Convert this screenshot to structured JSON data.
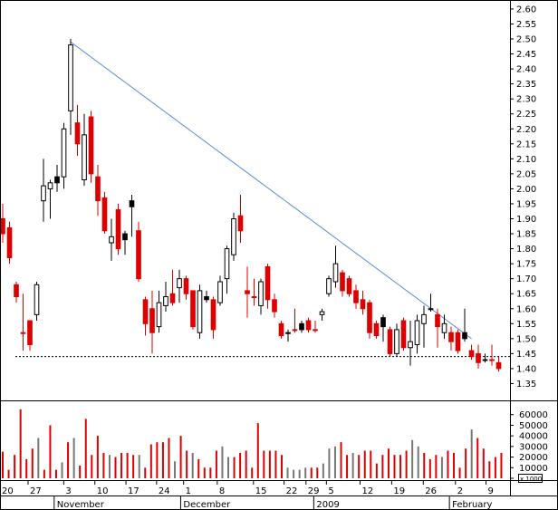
{
  "chart_data": [
    {
      "type": "candlestick",
      "y_ticks": [
        "2.60",
        "2.55",
        "2.50",
        "2.45",
        "2.40",
        "2.35",
        "2.30",
        "2.25",
        "2.20",
        "2.15",
        "2.10",
        "2.05",
        "2.00",
        "1.95",
        "1.90",
        "1.85",
        "1.80",
        "1.75",
        "1.70",
        "1.65",
        "1.60",
        "1.55",
        "1.50",
        "1.45",
        "1.40",
        "1.35"
      ],
      "ylim": [
        1.3,
        2.63
      ],
      "grid": false,
      "trendline": {
        "from": 2.49,
        "to": 1.5
      },
      "support_level": 1.44,
      "up_color": "#ffffff",
      "down_color": "#dd0000",
      "candles": [
        {
          "o": 1.9,
          "h": 1.95,
          "l": 1.82,
          "c": 1.85,
          "k": "red"
        },
        {
          "o": 1.87,
          "h": 1.89,
          "l": 1.75,
          "c": 1.77,
          "k": "red"
        },
        {
          "o": 1.68,
          "h": 1.69,
          "l": 1.62,
          "c": 1.64,
          "k": "red"
        },
        {
          "o": 1.52,
          "h": 1.65,
          "l": 1.46,
          "c": 1.52,
          "k": "red"
        },
        {
          "o": 1.48,
          "h": 1.56,
          "l": 1.46,
          "c": 1.56,
          "k": "red"
        },
        {
          "o": 1.58,
          "h": 1.69,
          "l": 1.56,
          "c": 1.68,
          "k": "white"
        },
        {
          "o": 1.96,
          "h": 2.1,
          "l": 1.89,
          "c": 2.01,
          "k": "white"
        },
        {
          "o": 2.0,
          "h": 2.03,
          "l": 1.9,
          "c": 2.02,
          "k": "white"
        },
        {
          "o": 2.02,
          "h": 2.08,
          "l": 1.99,
          "c": 2.04,
          "k": "black"
        },
        {
          "o": 2.04,
          "h": 2.22,
          "l": 2.0,
          "c": 2.2,
          "k": "white"
        },
        {
          "o": 2.26,
          "h": 2.5,
          "l": 2.18,
          "c": 2.48,
          "k": "white"
        },
        {
          "o": 2.22,
          "h": 2.28,
          "l": 2.11,
          "c": 2.15,
          "k": "red"
        },
        {
          "o": 2.03,
          "h": 2.25,
          "l": 2.01,
          "c": 2.18,
          "k": "white"
        },
        {
          "o": 2.24,
          "h": 2.26,
          "l": 2.02,
          "c": 2.05,
          "k": "red"
        },
        {
          "o": 2.04,
          "h": 2.08,
          "l": 1.91,
          "c": 1.96,
          "k": "red"
        },
        {
          "o": 1.97,
          "h": 1.99,
          "l": 1.85,
          "c": 1.86,
          "k": "red"
        },
        {
          "o": 1.82,
          "h": 1.9,
          "l": 1.76,
          "c": 1.84,
          "k": "white"
        },
        {
          "o": 1.93,
          "h": 1.95,
          "l": 1.78,
          "c": 1.8,
          "k": "red"
        },
        {
          "o": 1.85,
          "h": 1.86,
          "l": 1.78,
          "c": 1.83,
          "k": "black"
        },
        {
          "o": 1.94,
          "h": 1.98,
          "l": 1.84,
          "c": 1.96,
          "k": "black"
        },
        {
          "o": 1.86,
          "h": 1.89,
          "l": 1.69,
          "c": 1.7,
          "k": "red"
        },
        {
          "o": 1.63,
          "h": 1.64,
          "l": 1.51,
          "c": 1.55,
          "k": "red"
        },
        {
          "o": 1.6,
          "h": 1.66,
          "l": 1.45,
          "c": 1.52,
          "k": "red"
        },
        {
          "o": 1.54,
          "h": 1.66,
          "l": 1.52,
          "c": 1.62,
          "k": "white"
        },
        {
          "o": 1.61,
          "h": 1.69,
          "l": 1.59,
          "c": 1.64,
          "k": "white"
        },
        {
          "o": 1.65,
          "h": 1.73,
          "l": 1.61,
          "c": 1.62,
          "k": "red"
        },
        {
          "o": 1.67,
          "h": 1.73,
          "l": 1.62,
          "c": 1.7,
          "k": "white"
        },
        {
          "o": 1.7,
          "h": 1.71,
          "l": 1.63,
          "c": 1.65,
          "k": "red"
        },
        {
          "o": 1.66,
          "h": 1.66,
          "l": 1.53,
          "c": 1.54,
          "k": "red"
        },
        {
          "o": 1.52,
          "h": 1.68,
          "l": 1.5,
          "c": 1.66,
          "k": "white"
        },
        {
          "o": 1.64,
          "h": 1.66,
          "l": 1.62,
          "c": 1.63,
          "k": "black"
        },
        {
          "o": 1.63,
          "h": 1.64,
          "l": 1.5,
          "c": 1.53,
          "k": "red"
        },
        {
          "o": 1.62,
          "h": 1.71,
          "l": 1.61,
          "c": 1.69,
          "k": "white"
        },
        {
          "o": 1.7,
          "h": 1.81,
          "l": 1.65,
          "c": 1.8,
          "k": "white"
        },
        {
          "o": 1.9,
          "h": 1.92,
          "l": 1.76,
          "c": 1.78,
          "k": "white"
        },
        {
          "o": 1.91,
          "h": 1.98,
          "l": 1.82,
          "c": 1.86,
          "k": "red"
        },
        {
          "o": 1.66,
          "h": 1.74,
          "l": 1.57,
          "c": 1.65,
          "k": "red"
        },
        {
          "o": 1.64,
          "h": 1.7,
          "l": 1.61,
          "c": 1.64,
          "k": "red"
        },
        {
          "o": 1.61,
          "h": 1.7,
          "l": 1.58,
          "c": 1.69,
          "k": "white"
        },
        {
          "o": 1.74,
          "h": 1.75,
          "l": 1.6,
          "c": 1.63,
          "k": "red"
        },
        {
          "o": 1.63,
          "h": 1.65,
          "l": 1.57,
          "c": 1.59,
          "k": "red"
        },
        {
          "o": 1.55,
          "h": 1.56,
          "l": 1.5,
          "c": 1.51,
          "k": "red"
        },
        {
          "o": 1.52,
          "h": 1.53,
          "l": 1.49,
          "c": 1.52,
          "k": "black"
        },
        {
          "o": 1.53,
          "h": 1.6,
          "l": 1.52,
          "c": 1.53,
          "k": "red"
        },
        {
          "o": 1.55,
          "h": 1.56,
          "l": 1.52,
          "c": 1.53,
          "k": "black"
        },
        {
          "o": 1.56,
          "h": 1.57,
          "l": 1.52,
          "c": 1.53,
          "k": "red"
        },
        {
          "o": 1.53,
          "h": 1.56,
          "l": 1.52,
          "c": 1.53,
          "k": "red"
        },
        {
          "o": 1.58,
          "h": 1.6,
          "l": 1.56,
          "c": 1.59,
          "k": "white"
        },
        {
          "o": 1.65,
          "h": 1.71,
          "l": 1.64,
          "c": 1.7,
          "k": "white"
        },
        {
          "o": 1.69,
          "h": 1.81,
          "l": 1.67,
          "c": 1.75,
          "k": "white"
        },
        {
          "o": 1.72,
          "h": 1.73,
          "l": 1.64,
          "c": 1.66,
          "k": "red"
        },
        {
          "o": 1.7,
          "h": 1.71,
          "l": 1.64,
          "c": 1.65,
          "k": "red"
        },
        {
          "o": 1.66,
          "h": 1.68,
          "l": 1.6,
          "c": 1.62,
          "k": "red"
        },
        {
          "o": 1.63,
          "h": 1.66,
          "l": 1.58,
          "c": 1.6,
          "k": "red"
        },
        {
          "o": 1.62,
          "h": 1.63,
          "l": 1.5,
          "c": 1.52,
          "k": "red"
        },
        {
          "o": 1.55,
          "h": 1.56,
          "l": 1.5,
          "c": 1.51,
          "k": "red"
        },
        {
          "o": 1.57,
          "h": 1.58,
          "l": 1.49,
          "c": 1.54,
          "k": "black"
        },
        {
          "o": 1.53,
          "h": 1.54,
          "l": 1.44,
          "c": 1.45,
          "k": "red"
        },
        {
          "o": 1.45,
          "h": 1.55,
          "l": 1.44,
          "c": 1.53,
          "k": "white"
        },
        {
          "o": 1.56,
          "h": 1.57,
          "l": 1.46,
          "c": 1.47,
          "k": "red"
        },
        {
          "o": 1.49,
          "h": 1.56,
          "l": 1.41,
          "c": 1.47,
          "k": "white"
        },
        {
          "o": 1.48,
          "h": 1.58,
          "l": 1.45,
          "c": 1.56,
          "k": "white"
        },
        {
          "o": 1.55,
          "h": 1.61,
          "l": 1.47,
          "c": 1.58,
          "k": "white"
        },
        {
          "o": 1.6,
          "h": 1.65,
          "l": 1.59,
          "c": 1.6,
          "k": "black"
        },
        {
          "o": 1.58,
          "h": 1.6,
          "l": 1.47,
          "c": 1.54,
          "k": "red"
        },
        {
          "o": 1.55,
          "h": 1.58,
          "l": 1.5,
          "c": 1.52,
          "k": "white"
        },
        {
          "o": 1.52,
          "h": 1.54,
          "l": 1.46,
          "c": 1.49,
          "k": "red"
        },
        {
          "o": 1.52,
          "h": 1.53,
          "l": 1.45,
          "c": 1.46,
          "k": "red"
        },
        {
          "o": 1.52,
          "h": 1.6,
          "l": 1.49,
          "c": 1.5,
          "k": "black"
        },
        {
          "o": 1.46,
          "h": 1.48,
          "l": 1.43,
          "c": 1.44,
          "k": "red"
        },
        {
          "o": 1.45,
          "h": 1.48,
          "l": 1.4,
          "c": 1.42,
          "k": "red"
        },
        {
          "o": 1.43,
          "h": 1.45,
          "l": 1.42,
          "c": 1.43,
          "k": "white"
        },
        {
          "o": 1.43,
          "h": 1.48,
          "l": 1.41,
          "c": 1.43,
          "k": "red"
        },
        {
          "o": 1.42,
          "h": 1.44,
          "l": 1.39,
          "c": 1.4,
          "k": "red"
        }
      ]
    },
    {
      "type": "bar",
      "y_ticks": [
        "60000",
        "50000",
        "40000",
        "30000",
        "20000",
        "10000",
        "0"
      ],
      "ylim": [
        0,
        70000
      ],
      "unit_label": "x 1000",
      "colors": {
        "red": "#dd0000",
        "gray": "#777777"
      },
      "bars": [
        {
          "v": 25000,
          "k": "red"
        },
        {
          "v": 8000,
          "k": "red"
        },
        {
          "v": 22000,
          "k": "red"
        },
        {
          "v": 65000,
          "k": "red"
        },
        {
          "v": 18000,
          "k": "red"
        },
        {
          "v": 28000,
          "k": "red"
        },
        {
          "v": 38000,
          "k": "gray"
        },
        {
          "v": 8000,
          "k": "red"
        },
        {
          "v": 50000,
          "k": "red"
        },
        {
          "v": 8000,
          "k": "red"
        },
        {
          "v": 15000,
          "k": "gray"
        },
        {
          "v": 34000,
          "k": "red"
        },
        {
          "v": 38000,
          "k": "gray"
        },
        {
          "v": 12000,
          "k": "red"
        },
        {
          "v": 56000,
          "k": "red"
        },
        {
          "v": 22000,
          "k": "red"
        },
        {
          "v": 40000,
          "k": "red"
        },
        {
          "v": 24000,
          "k": "red"
        },
        {
          "v": 22000,
          "k": "gray"
        },
        {
          "v": 20000,
          "k": "red"
        },
        {
          "v": 24000,
          "k": "red"
        },
        {
          "v": 24000,
          "k": "red"
        },
        {
          "v": 22000,
          "k": "red"
        },
        {
          "v": 22000,
          "k": "gray"
        },
        {
          "v": 10000,
          "k": "red"
        },
        {
          "v": 32000,
          "k": "red"
        },
        {
          "v": 34000,
          "k": "red"
        },
        {
          "v": 34000,
          "k": "red"
        },
        {
          "v": 38000,
          "k": "red"
        },
        {
          "v": 16000,
          "k": "gray"
        },
        {
          "v": 40000,
          "k": "red"
        },
        {
          "v": 26000,
          "k": "red"
        },
        {
          "v": 24000,
          "k": "gray"
        },
        {
          "v": 18000,
          "k": "red"
        },
        {
          "v": 10000,
          "k": "red"
        },
        {
          "v": 10000,
          "k": "red"
        },
        {
          "v": 26000,
          "k": "red"
        },
        {
          "v": 30000,
          "k": "gray"
        },
        {
          "v": 20000,
          "k": "gray"
        },
        {
          "v": 20000,
          "k": "red"
        },
        {
          "v": 24000,
          "k": "red"
        },
        {
          "v": 26000,
          "k": "red"
        },
        {
          "v": 10000,
          "k": "red"
        },
        {
          "v": 52000,
          "k": "red"
        },
        {
          "v": 26000,
          "k": "red"
        },
        {
          "v": 26000,
          "k": "red"
        },
        {
          "v": 26000,
          "k": "red"
        },
        {
          "v": 22000,
          "k": "red"
        },
        {
          "v": 10000,
          "k": "gray"
        },
        {
          "v": 8000,
          "k": "gray"
        },
        {
          "v": 8000,
          "k": "gray"
        },
        {
          "v": 10000,
          "k": "gray"
        },
        {
          "v": 10000,
          "k": "red"
        },
        {
          "v": 10000,
          "k": "red"
        },
        {
          "v": 14000,
          "k": "gray"
        },
        {
          "v": 28000,
          "k": "gray"
        },
        {
          "v": 30000,
          "k": "gray"
        },
        {
          "v": 34000,
          "k": "red"
        },
        {
          "v": 22000,
          "k": "red"
        },
        {
          "v": 24000,
          "k": "gray"
        },
        {
          "v": 22000,
          "k": "red"
        },
        {
          "v": 26000,
          "k": "red"
        },
        {
          "v": 26000,
          "k": "red"
        },
        {
          "v": 14000,
          "k": "red"
        },
        {
          "v": 22000,
          "k": "red"
        },
        {
          "v": 28000,
          "k": "red"
        },
        {
          "v": 22000,
          "k": "red"
        },
        {
          "v": 22000,
          "k": "red"
        },
        {
          "v": 26000,
          "k": "red"
        },
        {
          "v": 36000,
          "k": "gray"
        },
        {
          "v": 30000,
          "k": "gray"
        },
        {
          "v": 24000,
          "k": "red"
        },
        {
          "v": 18000,
          "k": "red"
        },
        {
          "v": 22000,
          "k": "red"
        },
        {
          "v": 20000,
          "k": "gray"
        },
        {
          "v": 26000,
          "k": "red"
        },
        {
          "v": 24000,
          "k": "red"
        },
        {
          "v": 10000,
          "k": "red"
        },
        {
          "v": 28000,
          "k": "red"
        },
        {
          "v": 46000,
          "k": "gray"
        },
        {
          "v": 38000,
          "k": "red"
        },
        {
          "v": 28000,
          "k": "red"
        },
        {
          "v": 16000,
          "k": "red"
        },
        {
          "v": 20000,
          "k": "red"
        },
        {
          "v": 24000,
          "k": "red"
        }
      ]
    }
  ],
  "x_axis": {
    "day_ticks": [
      {
        "label": "20",
        "pos": 0.0
      },
      {
        "label": "27",
        "pos": 0.055
      },
      {
        "label": "3",
        "pos": 0.125
      },
      {
        "label": "10",
        "pos": 0.186
      },
      {
        "label": "17",
        "pos": 0.247
      },
      {
        "label": "24",
        "pos": 0.307
      },
      {
        "label": "1",
        "pos": 0.36
      },
      {
        "label": "8",
        "pos": 0.426
      },
      {
        "label": "15",
        "pos": 0.497
      },
      {
        "label": "22",
        "pos": 0.557
      },
      {
        "label": "29",
        "pos": 0.6
      },
      {
        "label": "5",
        "pos": 0.64
      },
      {
        "label": "12",
        "pos": 0.706
      },
      {
        "label": "19",
        "pos": 0.768
      },
      {
        "label": "26",
        "pos": 0.83
      },
      {
        "label": "2",
        "pos": 0.893
      },
      {
        "label": "9",
        "pos": 0.953
      }
    ],
    "months": [
      {
        "label": "November",
        "pos": 0.108
      },
      {
        "label": "December",
        "pos": 0.356
      },
      {
        "label": "2009",
        "pos": 0.617
      },
      {
        "label": "February",
        "pos": 0.883
      }
    ]
  }
}
